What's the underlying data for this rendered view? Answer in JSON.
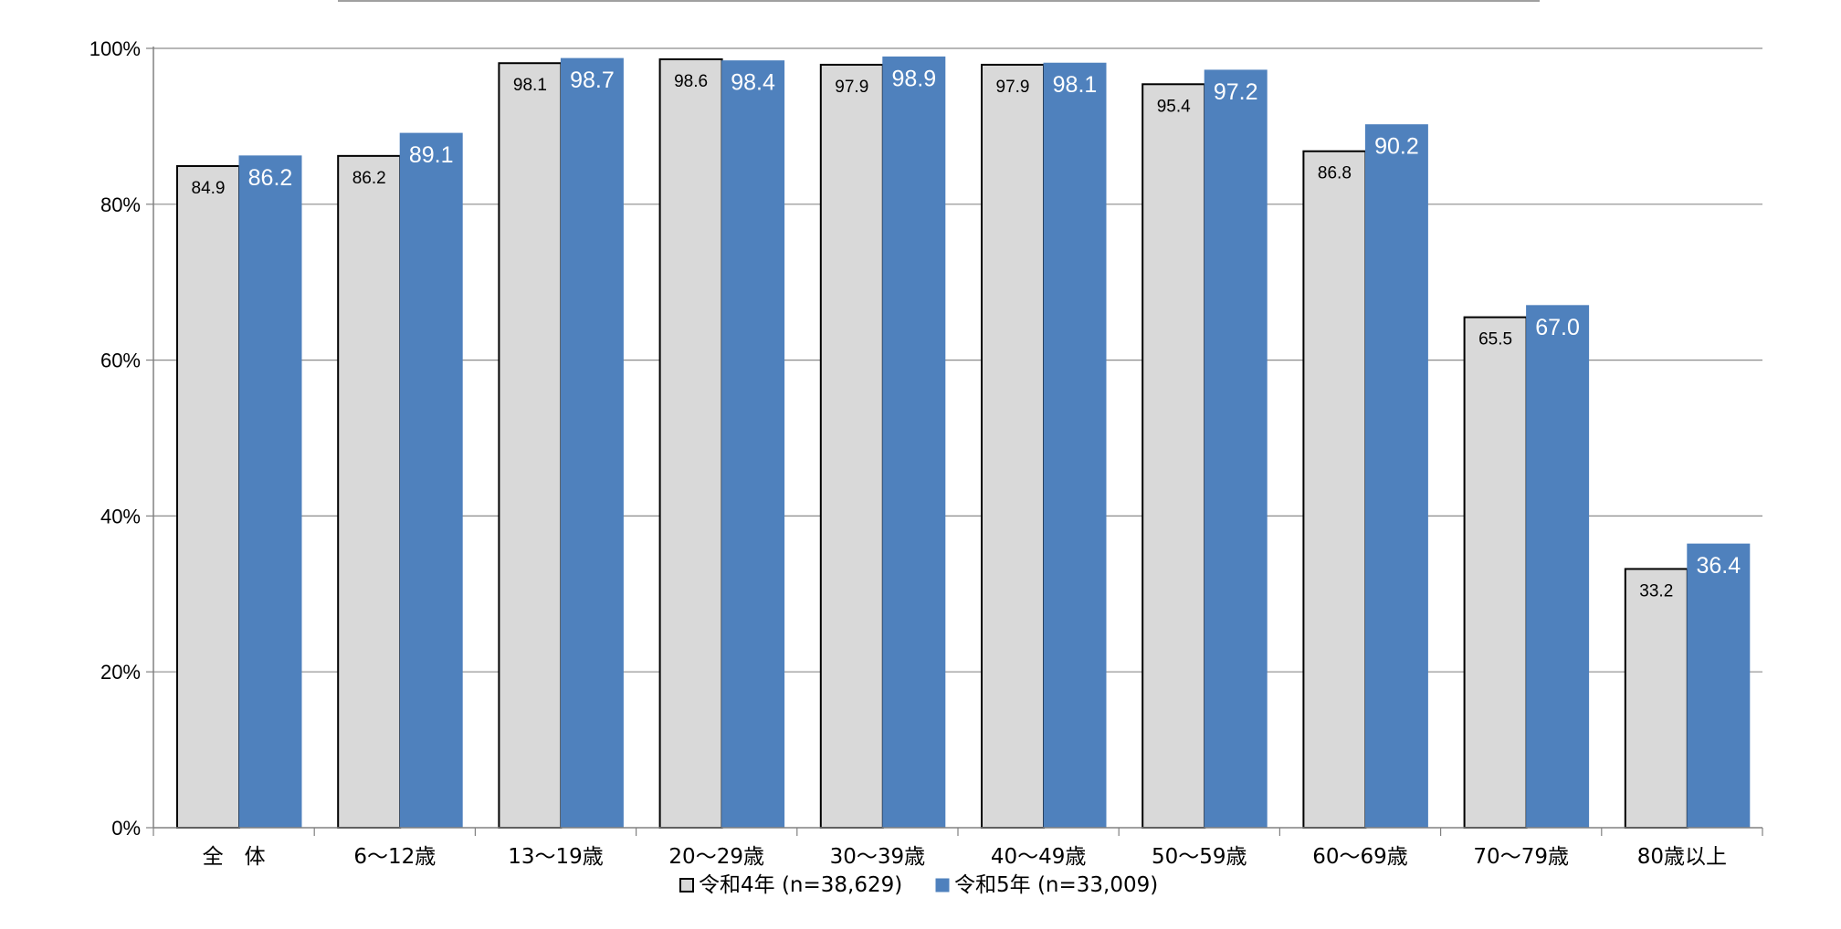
{
  "chart_data": {
    "type": "bar",
    "categories": [
      "全　体",
      "6～12歳",
      "13～19歳",
      "20～29歳",
      "30～39歳",
      "40～49歳",
      "50～59歳",
      "60～69歳",
      "70～79歳",
      "80歳以上"
    ],
    "series": [
      {
        "name": "令和4年 (n=38,629)",
        "values": [
          84.9,
          86.2,
          98.1,
          98.6,
          97.9,
          97.9,
          95.4,
          86.8,
          65.5,
          33.2
        ],
        "color": "#d9d9d9",
        "stroke": "#000000"
      },
      {
        "name": "令和5年 (n=33,009)",
        "values": [
          86.2,
          89.1,
          98.7,
          98.4,
          98.9,
          98.1,
          97.2,
          90.2,
          67.0,
          36.4
        ],
        "color": "#4f81bd",
        "stroke": "#4f81bd"
      }
    ],
    "ylim": [
      0,
      100
    ],
    "yticks": [
      "0%",
      "20%",
      "40%",
      "60%",
      "80%",
      "100%"
    ],
    "grid": true,
    "legend_position": "bottom"
  }
}
